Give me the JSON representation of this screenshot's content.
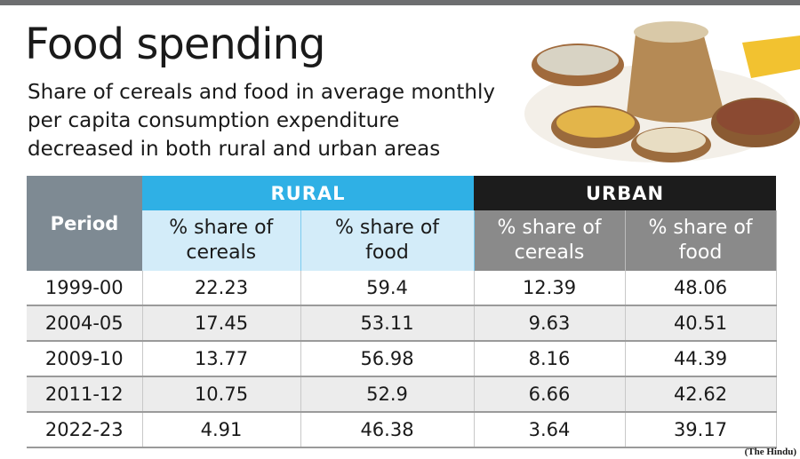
{
  "header": {
    "title": "Food spending",
    "subtitle_lines": [
      "Share of cereals and food in average monthly",
      "per capita consumption expenditure",
      "decreased in both rural and urban areas"
    ]
  },
  "table": {
    "period_header": "Period",
    "groups": [
      "RURAL",
      "URBAN"
    ],
    "subheaders": [
      [
        "% share of",
        "cereals"
      ],
      [
        "% share of",
        "food"
      ],
      [
        "% share of",
        "cereals"
      ],
      [
        "% share of",
        "food"
      ]
    ],
    "rows": [
      [
        "1999-00",
        22.23,
        59.4,
        12.39,
        48.06
      ],
      [
        "2004-05",
        17.45,
        53.11,
        9.63,
        40.51
      ],
      [
        "2009-10",
        13.77,
        56.98,
        8.16,
        44.39
      ],
      [
        "2011-12",
        10.75,
        52.9,
        6.66,
        42.62
      ],
      [
        "2022-23",
        4.91,
        46.38,
        3.64,
        39.17
      ]
    ]
  },
  "source": "(The Hindu)"
}
